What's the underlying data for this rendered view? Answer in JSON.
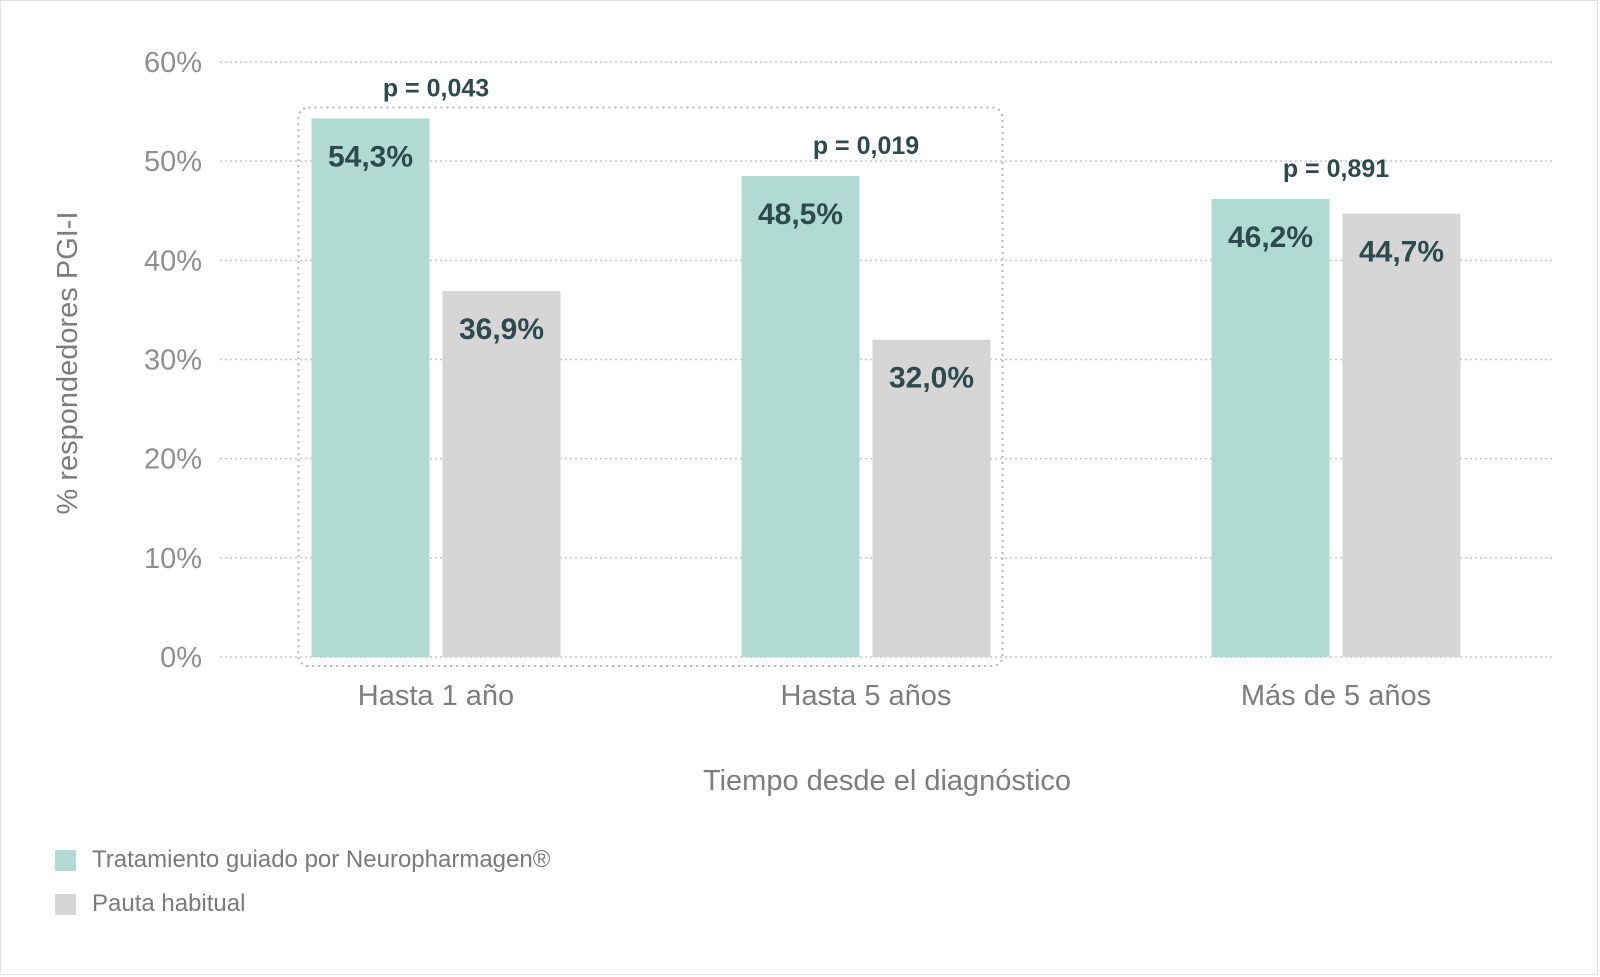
{
  "chart_data": {
    "type": "bar",
    "categories": [
      "Hasta 1 año",
      "Hasta 5 años",
      "Más de 5 años"
    ],
    "series": [
      {
        "name": "Tratamiento guiado por Neuropharmagen®",
        "values": [
          54.3,
          48.5,
          46.2
        ],
        "labels": [
          "54,3%",
          "48,5%",
          "46,2%"
        ],
        "color": "#b1dbd2"
      },
      {
        "name": "Pauta habitual",
        "values": [
          36.9,
          32.0,
          44.7
        ],
        "labels": [
          "36,9%",
          "32,0%",
          "44,7%"
        ],
        "color": "#d6d6d6"
      }
    ],
    "p_values": [
      "p = 0,043",
      "p = 0,019",
      "p = 0,891"
    ],
    "ylabel": "% respondedores PGI-I",
    "xlabel": "Tiempo desde el diagnóstico",
    "ylim": [
      0,
      60
    ],
    "yticks": [
      0,
      10,
      20,
      30,
      40,
      50,
      60
    ],
    "ytick_labels": [
      "0%",
      "10%",
      "20%",
      "30%",
      "40%",
      "50%",
      "60%"
    ],
    "grid": "dotted horizontal",
    "legend_position": "bottom-left",
    "highlight": "dotted box around first two categories"
  }
}
